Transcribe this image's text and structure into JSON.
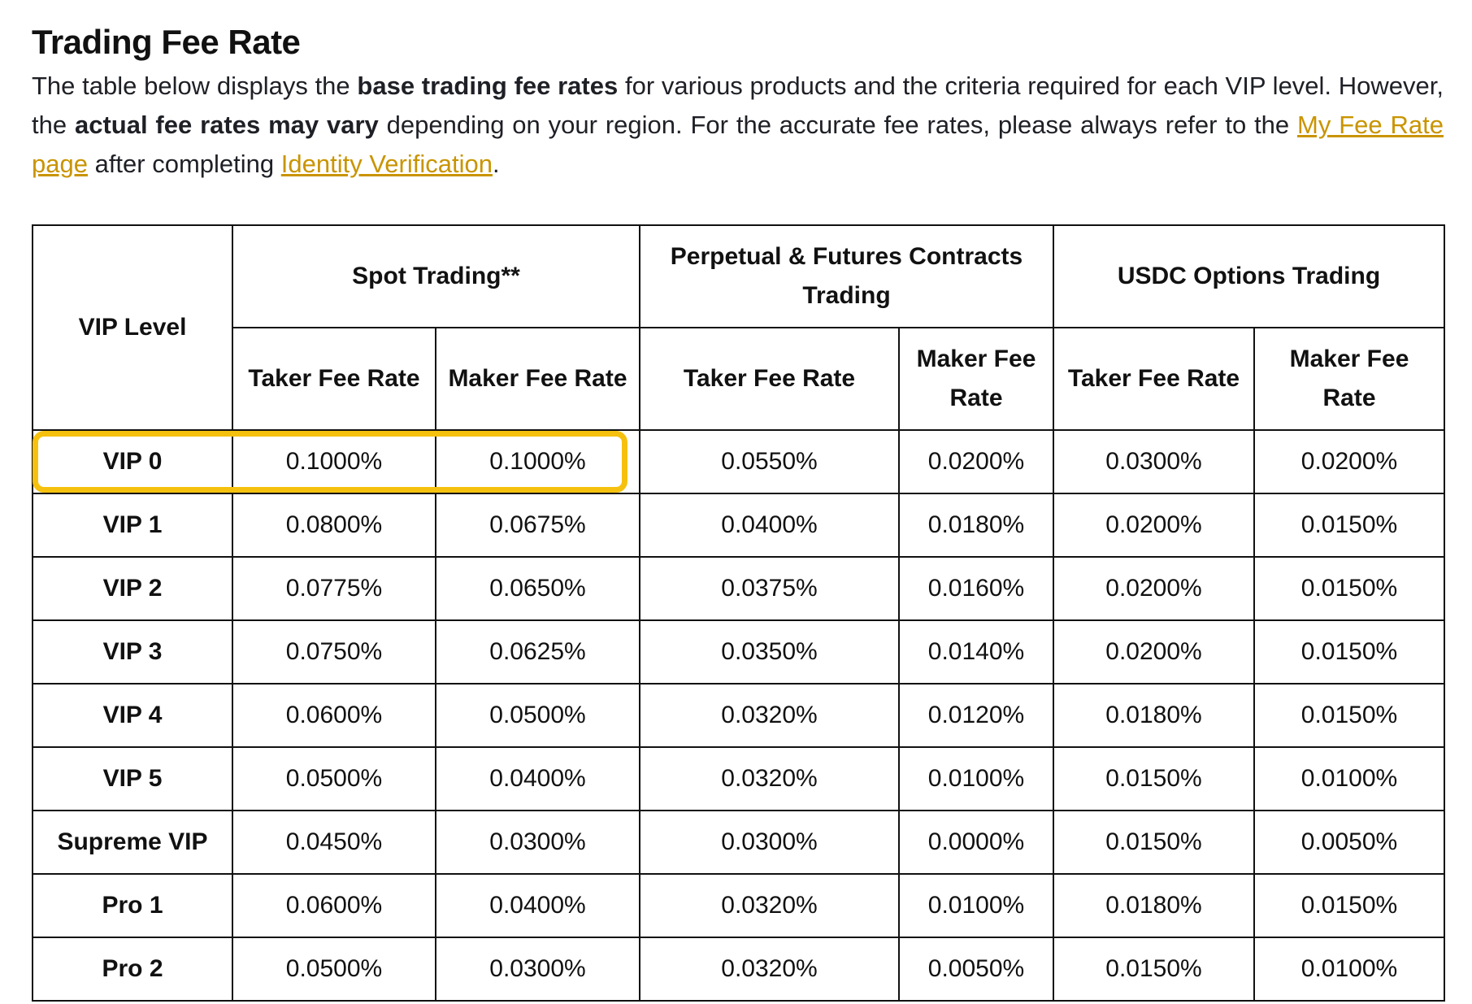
{
  "title": "Trading Fee Rate",
  "intro": {
    "t1": "The table below displays the ",
    "b1": "base trading fee rates",
    "t2": " for various products and the criteria required for each VIP level. However, the ",
    "b2": "actual fee rates may vary",
    "t3": " depending on your region. For the accurate fee rates, please always refer to the ",
    "link1": "My Fee Rate page",
    "t4": " after completing ",
    "link2": "Identity Verification",
    "t5": "."
  },
  "highlight_color": "#f6c10e",
  "link_color": "#c99400",
  "table": {
    "vip_level_header": "VIP Level",
    "groups": [
      "Spot Trading**",
      "Perpetual & Futures Contracts Trading",
      "USDC Options Trading"
    ],
    "subheaders": [
      "Taker Fee Rate",
      "Maker Fee Rate",
      "Taker Fee Rate",
      "Maker Fee Rate",
      "Taker Fee Rate",
      "Maker Fee Rate"
    ],
    "highlighted_row": "VIP 0",
    "rows": [
      [
        "VIP 0",
        "0.1000%",
        "0.1000%",
        "0.0550%",
        "0.0200%",
        "0.0300%",
        "0.0200%"
      ],
      [
        "VIP 1",
        "0.0800%",
        "0.0675%",
        "0.0400%",
        "0.0180%",
        "0.0200%",
        "0.0150%"
      ],
      [
        "VIP 2",
        "0.0775%",
        "0.0650%",
        "0.0375%",
        "0.0160%",
        "0.0200%",
        "0.0150%"
      ],
      [
        "VIP 3",
        "0.0750%",
        "0.0625%",
        "0.0350%",
        "0.0140%",
        "0.0200%",
        "0.0150%"
      ],
      [
        "VIP 4",
        "0.0600%",
        "0.0500%",
        "0.0320%",
        "0.0120%",
        "0.0180%",
        "0.0150%"
      ],
      [
        "VIP 5",
        "0.0500%",
        "0.0400%",
        "0.0320%",
        "0.0100%",
        "0.0150%",
        "0.0100%"
      ],
      [
        "Supreme VIP",
        "0.0450%",
        "0.0300%",
        "0.0300%",
        "0.0000%",
        "0.0150%",
        "0.0050%"
      ],
      [
        "Pro 1",
        "0.0600%",
        "0.0400%",
        "0.0320%",
        "0.0100%",
        "0.0180%",
        "0.0150%"
      ],
      [
        "Pro 2",
        "0.0500%",
        "0.0300%",
        "0.0320%",
        "0.0050%",
        "0.0150%",
        "0.0100%"
      ]
    ]
  }
}
